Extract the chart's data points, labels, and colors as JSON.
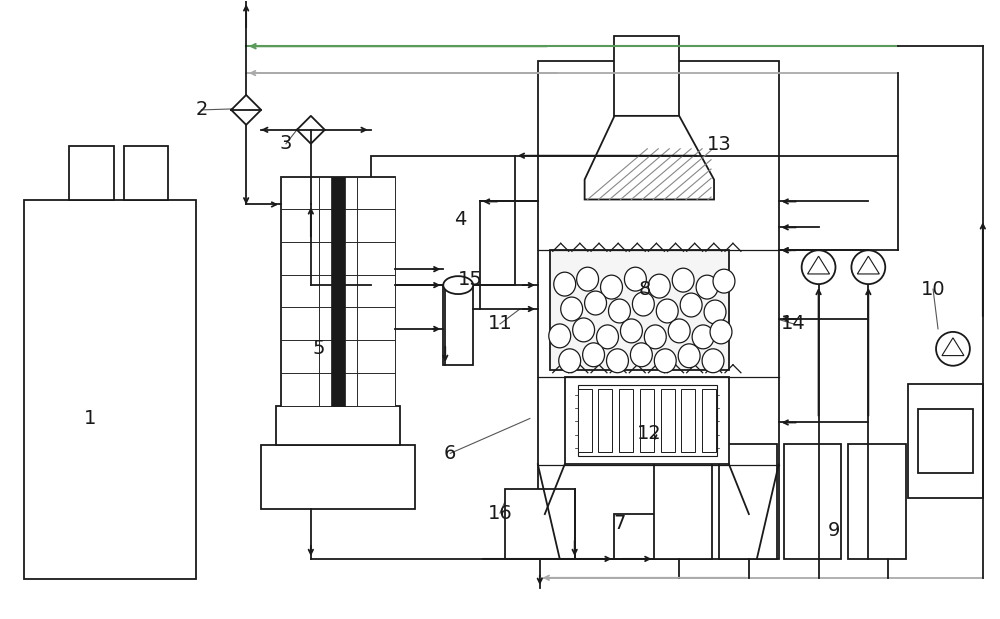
{
  "bg_color": "#ffffff",
  "line_color": "#1a1a1a",
  "green_line_color": "#5a9a5a",
  "gray_line_color": "#aaaaaa",
  "label_color": "#1a1a1a",
  "figsize": [
    10.0,
    6.19
  ],
  "dpi": 100
}
